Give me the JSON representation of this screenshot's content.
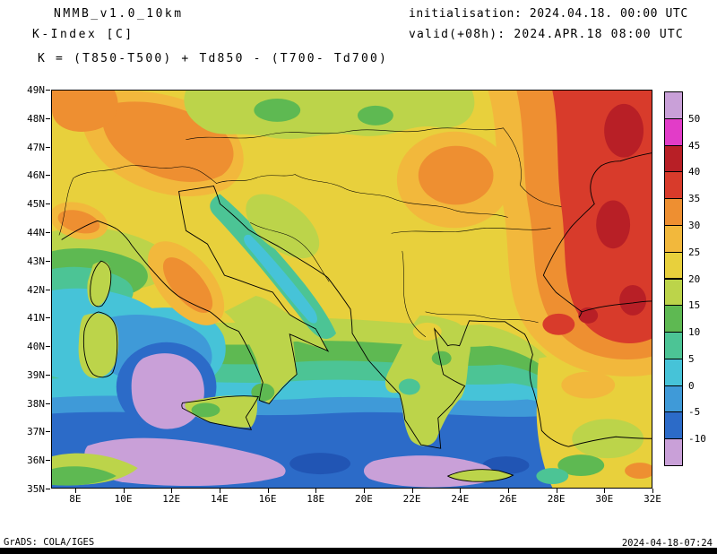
{
  "header": {
    "model_title": "NMMB_v1.0_10km",
    "variable_title": "K-Index [C]",
    "initialisation": "initialisation: 2024.04.18. 00:00 UTC",
    "valid": "valid(+08h): 2024.APR.18 08:00 UTC",
    "formula": "K = (T850-T500) + Td850 - (T700- Td700)"
  },
  "footer": {
    "generator": "GrADS: COLA/IGES",
    "timestamp": "2024-04-18-07:24"
  },
  "colors": {
    "background": "#ffffff",
    "frame": "#000000",
    "coastline": "#000000"
  },
  "chart_data": {
    "type": "heatmap",
    "title": "K-Index [C]",
    "model": "NMMB_v1.0_10km",
    "units": "C",
    "grid": false,
    "map_overlay": "coastlines and national borders over filled contours",
    "x_axis": {
      "tick_labels": [
        "8E",
        "10E",
        "12E",
        "14E",
        "16E",
        "18E",
        "20E",
        "22E",
        "24E",
        "26E",
        "28E",
        "30E",
        "32E"
      ]
    },
    "y_axis": {
      "tick_labels": [
        "49N",
        "48N",
        "47N",
        "46N",
        "45N",
        "44N",
        "43N",
        "42N",
        "41N",
        "40N",
        "39N",
        "38N",
        "37N",
        "36N",
        "35N"
      ]
    },
    "colorbar": {
      "position": "right",
      "tick_labels": [
        "50",
        "45",
        "40",
        "35",
        "30",
        "25",
        "20",
        "15",
        "10",
        "5",
        "0",
        "-5",
        "-10"
      ],
      "segments_top_to_bottom": [
        {
          "range": "above 50",
          "color": "#c9a0d8"
        },
        {
          "range": "45 to 50",
          "color": "#e23cc8"
        },
        {
          "range": "40 to 45",
          "color": "#b81f26"
        },
        {
          "range": "35 to 40",
          "color": "#d83b2b"
        },
        {
          "range": "30 to 35",
          "color": "#ee8f31"
        },
        {
          "range": "25 to 30",
          "color": "#f2b83c"
        },
        {
          "range": "20 to 25",
          "color": "#e8d03c"
        },
        {
          "range": "15 to 20",
          "color": "#bcd44a"
        },
        {
          "range": "10 to 15",
          "color": "#5eb952"
        },
        {
          "range": "5 to 10",
          "color": "#4cc495"
        },
        {
          "range": "0 to 5",
          "color": "#46c3d8"
        },
        {
          "range": "-5 to 0",
          "color": "#3f9ad8"
        },
        {
          "range": "-10 to -5",
          "color": "#2c6bc8"
        },
        {
          "range": "below -10",
          "color": "#c9a0d8"
        }
      ]
    },
    "regions_approx": [
      {
        "area": "E Bulgaria / W Black Sea / NW Turkey / E Romania (27E-32E, 40N-49N)",
        "k_index_c": "35 to 40, broad red maximum"
      },
      {
        "area": "dark-red cores near 29E-31.5E (41N, 43.5N-44.5N, 47N-48N)",
        "k_index_c": "40 to 45"
      },
      {
        "area": "SE Romania / N Bulgaria transition belt (25E-28E)",
        "k_index_c": "25 to 35"
      },
      {
        "area": "Alps (8E-13.5E, 45.5N-48.5N)",
        "k_index_c": "25 to 35"
      },
      {
        "area": "NW corner (7E-9.5E, 47N-49N)",
        "k_index_c": "30 to 35"
      },
      {
        "area": "central Apennines, Italy (11E-14E, 41N-44N)",
        "k_index_c": "25 to 35"
      },
      {
        "area": "Serbia / W Romania orange patch (22E-25E, 44N-47N)",
        "k_index_c": "25 to 35"
      },
      {
        "area": "Pannonian plain and central Balkans (16E-24E, 43N-48N)",
        "k_index_c": "15 to 25"
      },
      {
        "area": "Adriatic Sea (13E-19E, 40N-45.5N)",
        "k_index_c": "0 to 10, teal-cyan band"
      },
      {
        "area": "Tyrrhenian Sea low (10.5E-14E, 36.5N-39.5N)",
        "k_index_c": "below -10 violet core ringed by -10 to 0 blues"
      },
      {
        "area": "central Mediterranean band (8E-26E, 35N-38N)",
        "k_index_c": "-10 to 0, violet cores below -10 near 36N and S of Crete"
      },
      {
        "area": "Ionian and Aegean seas",
        "k_index_c": "-5 to 10"
      },
      {
        "area": "Greece mainland (20E-24E, 37.5N-40.5N)",
        "k_index_c": "10 to 20 with teal coastal spots"
      },
      {
        "area": "SW Turkey / E Mediterranean corner (28E-32E, 35N-38N)",
        "k_index_c": "10 to 30, yellow-green-orange mix"
      }
    ]
  }
}
